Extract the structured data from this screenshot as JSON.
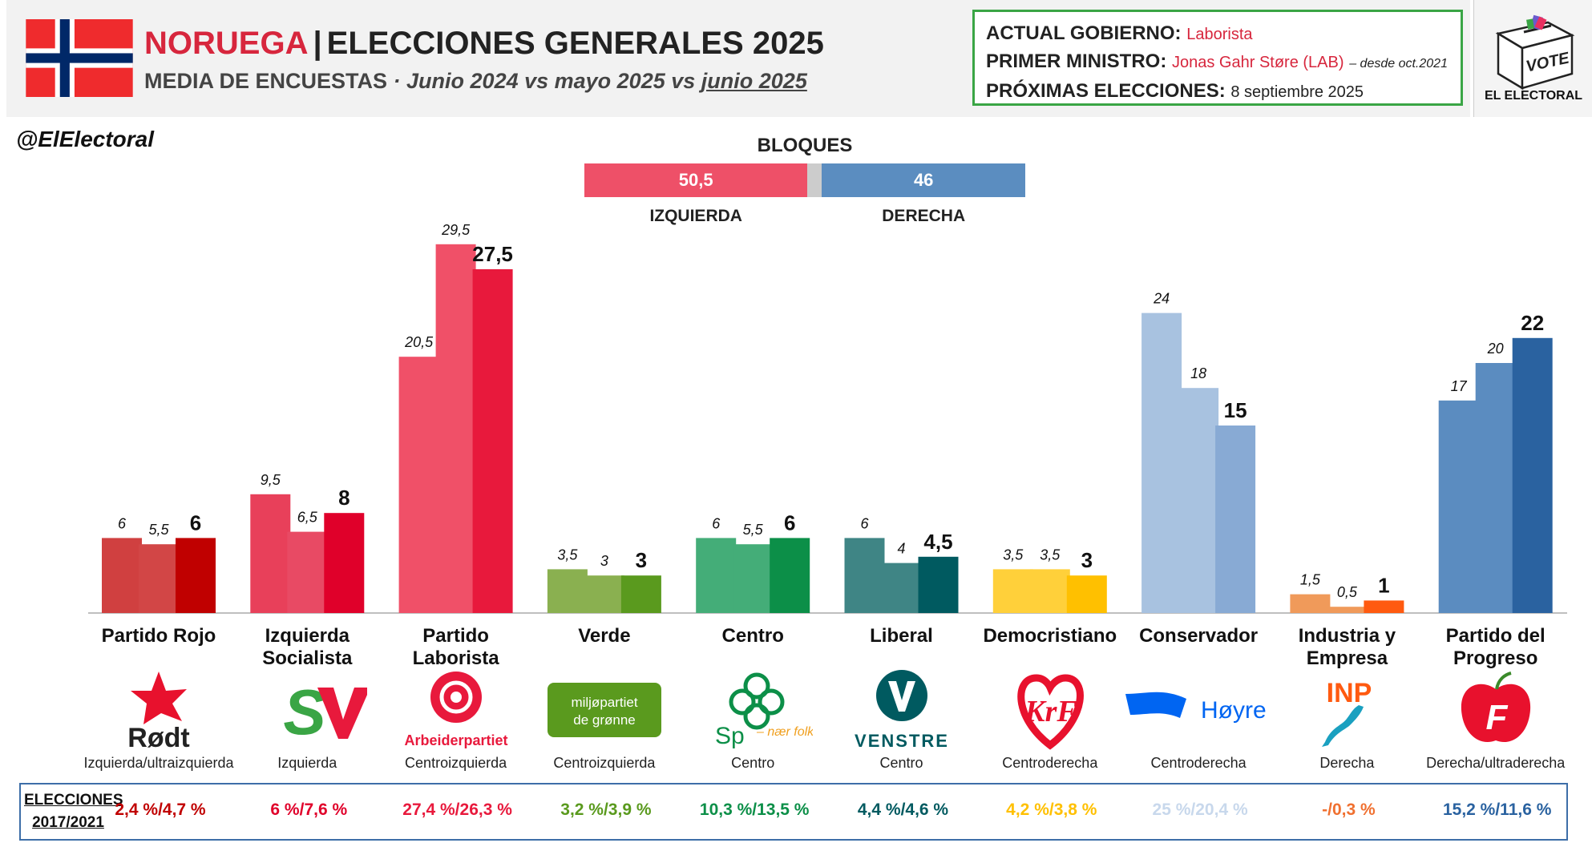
{
  "header": {
    "country": "NORUEGA",
    "title": "ELECCIONES GENERALES 2025",
    "subtitle_main": "MEDIA DE ENCUESTAS",
    "subtitle_dates": "· Junio 2024 vs mayo 2025 vs",
    "subtitle_current": "junio 2025"
  },
  "info": {
    "gov_label": "ACTUAL GOBIERNO:",
    "gov_value": "Laborista",
    "pm_label": "PRIMER MINISTRO:",
    "pm_value": "Jonas Gahr Støre (LAB)",
    "pm_since": "– desde oct.2021",
    "next_label": "PRÓXIMAS ELECCIONES:",
    "next_value": "8 septiembre 2025"
  },
  "logo": {
    "vote": "VOTE",
    "brand": "EL ELECTORAL"
  },
  "handle": "@ElElectoral",
  "bloques": {
    "title": "BLOQUES",
    "left": {
      "label": "IZQUIERDA",
      "value": 50.5,
      "value_text": "50,5",
      "color": "#ee5068"
    },
    "right": {
      "label": "DERECHA",
      "value": 46,
      "value_text": "46",
      "color": "#5b8dc0"
    },
    "gap_color": "#cccccc"
  },
  "chart_data": {
    "type": "bar",
    "series": [
      {
        "name": "Junio 2024"
      },
      {
        "name": "mayo 2025"
      },
      {
        "name": "junio 2025"
      }
    ],
    "categories": [
      "Partido Rojo",
      "Izquierda Socialista",
      "Partido Laborista",
      "Verde",
      "Centro",
      "Liberal",
      "Democristiano",
      "Conservador",
      "Industria y Empresa",
      "Partido del Progreso"
    ],
    "parties": [
      {
        "name": "Partido Rojo",
        "name_lines": [
          "Partido Rojo"
        ],
        "ideology": "Izquierda/ultraizquierda",
        "values": [
          6,
          5.5,
          6
        ],
        "labels": [
          "6",
          "5,5",
          "6"
        ],
        "colors": [
          "#d04040",
          "#d24646",
          "#c00000"
        ],
        "result": "2,4 %/4,7 %",
        "result_color": "#c00000",
        "logo": "rodt-star-logo",
        "logo_text": "Rødt"
      },
      {
        "name": "Izquierda Socialista",
        "name_lines": [
          "Izquierda",
          "Socialista"
        ],
        "ideology": "Izquierda",
        "values": [
          9.5,
          6.5,
          8
        ],
        "labels": [
          "9,5",
          "6,5",
          "8"
        ],
        "colors": [
          "#e8405a",
          "#e84a64",
          "#e0002a"
        ],
        "result": "6 %/7,6 %",
        "result_color": "#e0002a",
        "logo": "sv-logo",
        "logo_text": "SV"
      },
      {
        "name": "Partido Laborista",
        "name_lines": [
          "Partido",
          "Laborista"
        ],
        "ideology": "Centroizquierda",
        "values": [
          20.5,
          29.5,
          27.5
        ],
        "labels": [
          "20,5",
          "29,5",
          "27,5"
        ],
        "colors": [
          "#f05068",
          "#f05068",
          "#e8193c"
        ],
        "result": "27,4 %/26,3 %",
        "result_color": "#e8193c",
        "logo": "rose-logo",
        "logo_text": "Arbeiderpartiet"
      },
      {
        "name": "Verde",
        "name_lines": [
          "Verde"
        ],
        "ideology": "Centroizquierda",
        "values": [
          3.5,
          3,
          3
        ],
        "labels": [
          "3,5",
          "3",
          "3"
        ],
        "colors": [
          "#8ab050",
          "#8ab050",
          "#5a9a1e"
        ],
        "result": "3,2 %/3,9 %",
        "result_color": "#5a9a1e",
        "logo": "mdg-logo",
        "logo_text": "miljøpartiet de grønne"
      },
      {
        "name": "Centro",
        "name_lines": [
          "Centro"
        ],
        "ideology": "Centro",
        "values": [
          6,
          5.5,
          6
        ],
        "labels": [
          "6",
          "5,5",
          "6"
        ],
        "colors": [
          "#44ad78",
          "#44ad78",
          "#0c8f48"
        ],
        "result": "10,3 %/13,5 %",
        "result_color": "#0c8f48",
        "logo": "clover-logo",
        "logo_text": "Sp",
        "logo_sub": "nær folk"
      },
      {
        "name": "Liberal",
        "name_lines": [
          "Liberal"
        ],
        "ideology": "Centro",
        "values": [
          6,
          4,
          4.5
        ],
        "labels": [
          "6",
          "4",
          "4,5"
        ],
        "colors": [
          "#3f8585",
          "#3f8585",
          "#005a60"
        ],
        "result": "4,4 %/4,6 %",
        "result_color": "#005a60",
        "logo": "venstre-logo",
        "logo_text": "VENSTRE"
      },
      {
        "name": "Democristiano",
        "name_lines": [
          "Democristiano"
        ],
        "ideology": "Centroderecha",
        "values": [
          3.5,
          3.5,
          3
        ],
        "labels": [
          "3,5",
          "3,5",
          "3"
        ],
        "colors": [
          "#ffd03a",
          "#ffd03a",
          "#ffc000"
        ],
        "result": "4,2 %/3,8 %",
        "result_color": "#ffc000",
        "logo": "krf-logo",
        "logo_text": "KrF"
      },
      {
        "name": "Conservador",
        "name_lines": [
          "Conservador"
        ],
        "ideology": "Centroderecha",
        "values": [
          24,
          18,
          15
        ],
        "labels": [
          "24",
          "18",
          "15"
        ],
        "colors": [
          "#a8c2e0",
          "#a8c2e0",
          "#88aad4"
        ],
        "result": "25 %/20,4 %",
        "result_color": "#c8d8ec",
        "logo": "hoyre-logo",
        "logo_text": "Høyre"
      },
      {
        "name": "Industria y Empresa",
        "name_lines": [
          "Industria y",
          "Empresa"
        ],
        "ideology": "Derecha",
        "values": [
          1.5,
          0.5,
          1
        ],
        "labels": [
          "1,5",
          "0,5",
          "1"
        ],
        "colors": [
          "#f09a5a",
          "#f09a5a",
          "#ff5a10"
        ],
        "result": "-/0,3 %",
        "result_color": "#f07030",
        "logo": "inp-logo",
        "logo_text": "INP"
      },
      {
        "name": "Partido del Progreso",
        "name_lines": [
          "Partido del",
          "Progreso"
        ],
        "ideology": "Derecha/ultraderecha",
        "values": [
          17,
          20,
          22
        ],
        "labels": [
          "17",
          "20",
          "22"
        ],
        "colors": [
          "#5b8cc0",
          "#5b8cc0",
          "#2a62a0"
        ],
        "result": "15,2 %/11,6 %",
        "result_color": "#2a62a0",
        "logo": "frp-apple-logo",
        "logo_text": "F"
      }
    ]
  },
  "elecciones": {
    "label_line1": "ELECCIONES",
    "label_line2": "2017/2021"
  }
}
